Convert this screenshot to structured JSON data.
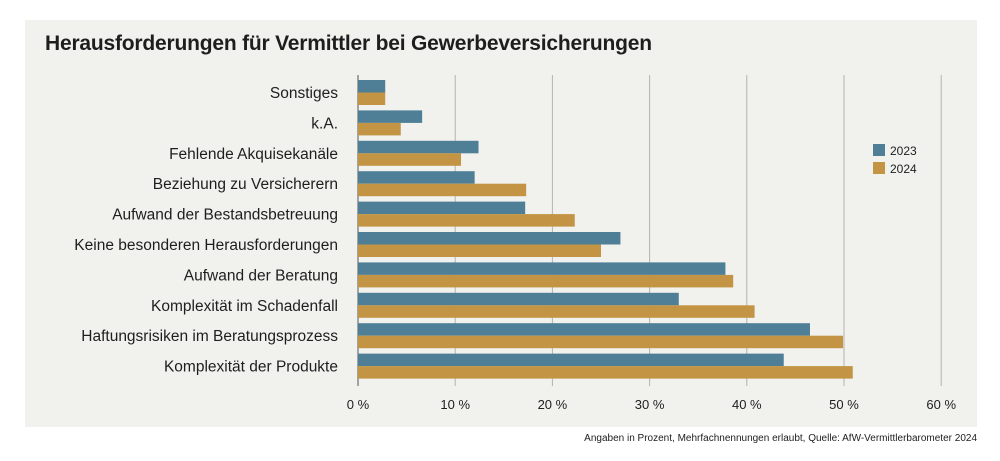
{
  "title": "Herausforderungen für Vermittler bei Gewerbeversicherungen",
  "footnote": "Angaben in Prozent, Mehrfachnennungen erlaubt, Quelle: AfW-Vermittlerbarometer 2024",
  "chart_data": {
    "type": "bar",
    "orientation": "horizontal",
    "title": "Herausforderungen für Vermittler bei Gewerbeversicherungen",
    "categories": [
      "Sonstiges",
      "k.A.",
      "Fehlende Akquisekanäle",
      "Beziehung zu Versicherern",
      "Aufwand der Bestandsbetreuung",
      "Keine besonderen Herausforderungen",
      "Aufwand der Beratung",
      "Komplexität im Schadenfall",
      "Haftungsrisiken im Beratungsprozess",
      "Komplexität der Produkte"
    ],
    "series": [
      {
        "name": "2023",
        "color": "#4e7f97",
        "values": [
          2.8,
          6.6,
          12.4,
          12.0,
          17.2,
          27.0,
          37.8,
          33.0,
          46.5,
          43.8
        ]
      },
      {
        "name": "2024",
        "color": "#c29443",
        "values": [
          2.8,
          4.4,
          10.6,
          17.3,
          22.3,
          25.0,
          38.6,
          40.8,
          49.9,
          50.9
        ]
      }
    ],
    "xlim": [
      0,
      60
    ],
    "xticks": [
      0,
      10,
      20,
      30,
      40,
      50,
      60
    ],
    "xtick_labels": [
      "0 %",
      "10 %",
      "20 %",
      "30 %",
      "40 %",
      "50 %",
      "60 %"
    ],
    "grid": "vertical",
    "legend": "right"
  }
}
